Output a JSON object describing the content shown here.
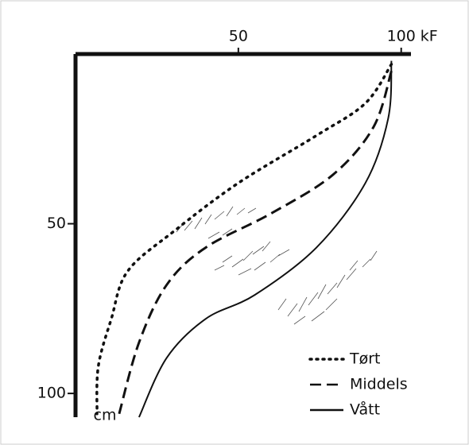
{
  "chart_data": {
    "type": "line",
    "x_label": "kF",
    "y_label": "cm",
    "xlim": [
      0,
      103
    ],
    "ylim": [
      0,
      107
    ],
    "xticks": [
      50,
      100
    ],
    "yticks": [
      50,
      100
    ],
    "legend": "lower right",
    "series": [
      {
        "name": "Tørt",
        "color": "#111111",
        "line_style": "dotted",
        "x": [
          97,
          89,
          74,
          50,
          30.5,
          16,
          11,
          7,
          6.6
        ],
        "values": [
          3,
          14.5,
          24,
          38,
          52,
          64,
          78,
          92,
          106
        ]
      },
      {
        "name": "Middels",
        "color": "#111111",
        "line_style": "dashed",
        "x": [
          97,
          91.5,
          79,
          60,
          40,
          28,
          19.5,
          13.4
        ],
        "values": [
          5,
          21.5,
          35.6,
          47,
          57,
          68,
          85,
          106
        ]
      },
      {
        "name": "Vått",
        "color": "#111111",
        "line_style": "solid",
        "x": [
          97,
          96,
          89,
          74,
          55,
          40,
          28,
          19.5
        ],
        "values": [
          2,
          19,
          38,
          57,
          71,
          78,
          89.5,
          107
        ]
      }
    ]
  }
}
